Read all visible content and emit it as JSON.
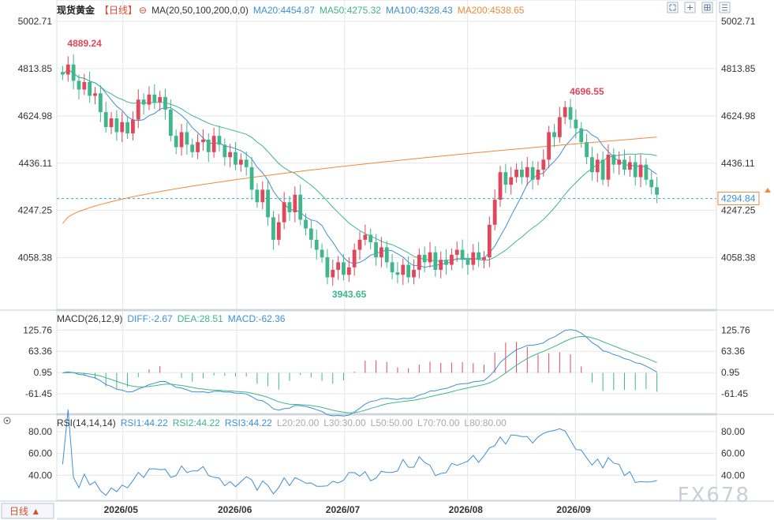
{
  "header": {
    "instrument": "现货黄金",
    "period_label": "【日线】",
    "ma_label": "MA(20,50,100,200,0,0)",
    "ma20": "MA20:4454.87",
    "ma50": "MA50:4275.32",
    "ma100": "MA100:4328.43",
    "ma200": "MA200:4538.65"
  },
  "macd_header": {
    "label": "MACD(26,12,9)",
    "diff": "DIFF:-2.67",
    "dea": "DEA:28.51",
    "macd": "MACD:-62.36"
  },
  "rsi_header": {
    "label": "RSI(14,14,14)",
    "rsi1": "RSI1:44.22",
    "rsi2": "RSI2:44.22",
    "rsi3": "RSI3:44.22",
    "l20": "L20:20.00",
    "l30": "L30:30.00",
    "l50": "L50:50.00",
    "l70": "L70:70.00",
    "l80": "L80:80.00"
  },
  "period_button": "日线 ▲",
  "watermark": "FX678",
  "colors": {
    "up": "#e0475a",
    "down": "#3fb68b",
    "ma20": "#3d8fd6",
    "ma50": "#3fb68b",
    "ma100": "#3d8fd6",
    "ma200": "#f08a3c",
    "price_line": "#3aa6c6",
    "grid": "#e6e6e6"
  },
  "chart_data": [
    {
      "type": "candlestick",
      "ylim": [
        3890,
        5050
      ],
      "y_ticks": [
        "5002.71",
        "4813.85",
        "4624.98",
        "4436.11",
        "4247.25",
        "4058.38"
      ],
      "x_ticks": [
        "2026/05",
        "2026/06",
        "2026/07",
        "2026/08",
        "2026/09"
      ],
      "current_price": "4294.84",
      "annotations": [
        {
          "label": "4889.24",
          "value": 4889.24,
          "kind": "high"
        },
        {
          "label": "4696.55",
          "value": 4696.55,
          "kind": "high"
        },
        {
          "label": "3943.65",
          "value": 3943.65,
          "kind": "low"
        }
      ],
      "closes": [
        4790,
        4830,
        4765,
        4730,
        4760,
        4705,
        4715,
        4640,
        4580,
        4615,
        4560,
        4600,
        4555,
        4610,
        4690,
        4670,
        4710,
        4680,
        4700,
        4650,
        4545,
        4500,
        4560,
        4510,
        4480,
        4520,
        4530,
        4480,
        4545,
        4510,
        4460,
        4480,
        4430,
        4450,
        4420,
        4330,
        4280,
        4330,
        4220,
        4130,
        4200,
        4280,
        4240,
        4310,
        4210,
        4175,
        4130,
        4090,
        4060,
        3980,
        4010,
        4040,
        3990,
        4020,
        4090,
        4130,
        4150,
        4120,
        4060,
        4100,
        4040,
        4000,
        3990,
        4030,
        3980,
        4010,
        4070,
        4040,
        4080,
        4010,
        4050,
        4030,
        4070,
        4090,
        4050,
        4030,
        4080,
        4050,
        4060,
        4190,
        4290,
        4400,
        4350,
        4380,
        4410,
        4380,
        4420,
        4370,
        4410,
        4450,
        4560,
        4540,
        4620,
        4660,
        4610,
        4575,
        4520,
        4460,
        4400,
        4450,
        4370,
        4470,
        4430,
        4450,
        4410,
        4440,
        4380,
        4430,
        4370,
        4340,
        4310
      ]
    },
    {
      "type": "macd",
      "ylim": [
        -110,
        145
      ],
      "y_ticks": [
        "125.76",
        "63.36",
        "0.95",
        "-61.45"
      ],
      "diff": -2.67,
      "dea": 28.51,
      "macd": -62.36
    },
    {
      "type": "rsi",
      "ylim": [
        20,
        85
      ],
      "y_ticks": [
        "80.00",
        "60.00",
        "40.00"
      ],
      "rsi": 44.22
    }
  ]
}
